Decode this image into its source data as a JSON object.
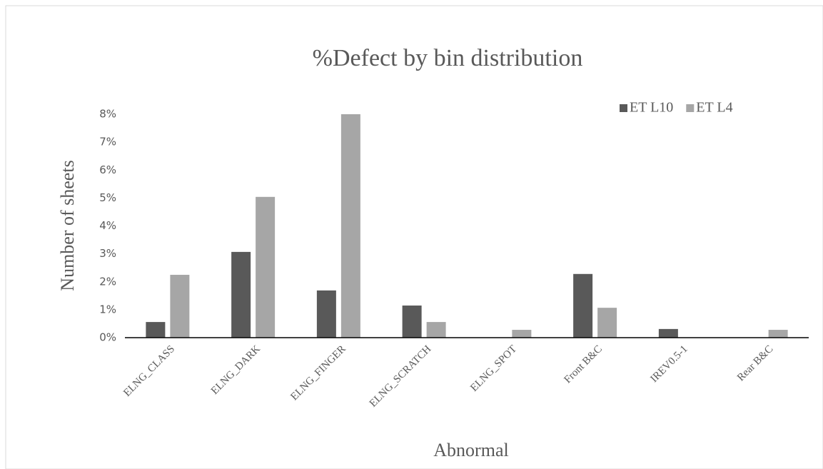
{
  "chart_data": {
    "type": "bar",
    "title": "%Defect  by bin distribution",
    "x_label": "Abnormal",
    "y_label": "Number of sheets",
    "categories": [
      "ELNG_CLASS",
      "ELNG_DARK",
      "ELNG_FINGER",
      "ELNG_SCRATCH",
      "ELNG_SPOT",
      "Front B&C",
      "IREV0.5-1",
      "Rear B&C"
    ],
    "series": [
      {
        "name": "ET L10",
        "color": "#595959",
        "values": [
          0.56,
          3.07,
          1.69,
          1.15,
          0,
          2.28,
          0.31,
          0
        ]
      },
      {
        "name": "ET L4",
        "color": "#a6a6a6",
        "values": [
          2.25,
          5.04,
          8.0,
          0.56,
          0.28,
          1.07,
          0,
          0.28
        ]
      }
    ],
    "ylim": [
      0,
      8
    ],
    "yticks": [
      {
        "value": 0,
        "label": "0%"
      },
      {
        "value": 1,
        "label": "1%"
      },
      {
        "value": 2,
        "label": "2%"
      },
      {
        "value": 3,
        "label": "3%"
      },
      {
        "value": 4,
        "label": "4%"
      },
      {
        "value": 5,
        "label": "5%"
      },
      {
        "value": 6,
        "label": "6%"
      },
      {
        "value": 7,
        "label": "7%"
      },
      {
        "value": 8,
        "label": "8%"
      }
    ],
    "grid": false,
    "legend": "top-right"
  }
}
